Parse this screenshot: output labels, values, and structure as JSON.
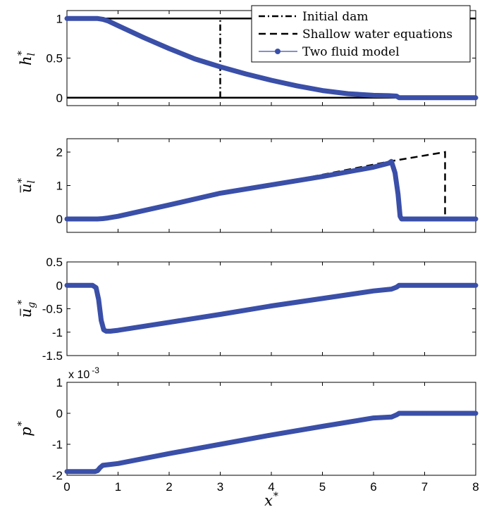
{
  "chart_data": {
    "type": "line",
    "xlabel": "x",
    "xlabel_sup": "*",
    "xlim": [
      0,
      8
    ],
    "xticks": [
      0,
      1,
      2,
      3,
      4,
      5,
      6,
      7,
      8
    ],
    "legend": {
      "placement": "top-right",
      "entries": [
        {
          "name": "Initial dam",
          "style": "dashdot",
          "color": "#000000"
        },
        {
          "name": "Shallow water equations",
          "style": "dashed",
          "color": "#000000"
        },
        {
          "name": "Two fluid model",
          "style": "line-marker",
          "color": "#3a4fa8"
        }
      ]
    },
    "panels": [
      {
        "id": "h",
        "ylabel_main": "h",
        "ylabel_sub": "l",
        "ylabel_sup": "*",
        "ylim": [
          -0.1,
          1.1
        ],
        "yticks": [
          0,
          0.5,
          1
        ],
        "ytick_labels": [
          "0",
          "0.5",
          "1"
        ],
        "series": [
          {
            "name": "Initial dam",
            "style": "dashdot",
            "x": [
              3,
              3
            ],
            "y": [
              0,
              1
            ]
          },
          {
            "name": "Shallow water equations",
            "style": "solid",
            "x": [
              0,
              8
            ],
            "y": [
              1,
              1
            ]
          },
          {
            "name": "Shallow water equations",
            "style": "solid",
            "x": [
              0,
              8
            ],
            "y": [
              0,
              0
            ]
          },
          {
            "name": "Two fluid model",
            "style": "line-marker",
            "x": [
              0,
              0.5,
              0.6,
              0.7,
              0.8,
              1,
              1.5,
              2,
              2.5,
              3,
              3.5,
              4,
              4.5,
              5,
              5.5,
              6,
              6.3,
              6.45,
              6.5,
              7,
              8
            ],
            "y": [
              1,
              1,
              1,
              0.99,
              0.97,
              0.91,
              0.76,
              0.62,
              0.49,
              0.39,
              0.3,
              0.22,
              0.15,
              0.09,
              0.05,
              0.03,
              0.025,
              0.02,
              0,
              0,
              0
            ]
          }
        ]
      },
      {
        "id": "ul",
        "ylabel_main": "u",
        "ylabel_sub": "l",
        "ylabel_sup": "*",
        "ylabel_bar": true,
        "ylim": [
          -0.4,
          2.4
        ],
        "yticks": [
          0,
          1,
          2
        ],
        "ytick_labels": [
          "0",
          "1",
          "2"
        ],
        "series": [
          {
            "name": "Shallow water equations",
            "style": "dashed",
            "x": [
              0,
              0.6,
              6.35,
              7.4,
              7.4,
              8
            ],
            "y": [
              0,
              0,
              1.73,
              2.0,
              0,
              0
            ]
          },
          {
            "name": "Two fluid model",
            "style": "line-marker",
            "x": [
              0,
              0.5,
              0.6,
              0.7,
              0.8,
              1,
              2,
              3,
              4,
              5,
              6,
              6.3,
              6.35,
              6.42,
              6.48,
              6.52,
              6.55,
              7,
              8
            ],
            "y": [
              0,
              0,
              0,
              0.01,
              0.03,
              0.08,
              0.42,
              0.77,
              1.02,
              1.27,
              1.55,
              1.67,
              1.72,
              1.38,
              0.74,
              0.08,
              0,
              0,
              0
            ]
          }
        ]
      },
      {
        "id": "ug",
        "ylabel_main": "u",
        "ylabel_sub": "g",
        "ylabel_sup": "*",
        "ylabel_bar": true,
        "ylim": [
          -1.5,
          0.5
        ],
        "yticks": [
          -1.5,
          -1,
          -0.5,
          0,
          0.5
        ],
        "ytick_labels": [
          "-1.5",
          "-1",
          "-0.5",
          "0",
          "0.5"
        ],
        "series": [
          {
            "name": "Two fluid model",
            "style": "line-marker",
            "x": [
              0,
              0.5,
              0.57,
              0.62,
              0.67,
              0.72,
              0.77,
              0.85,
              1,
              2,
              3,
              4,
              5,
              6,
              6.35,
              6.45,
              6.5,
              7,
              8
            ],
            "y": [
              0,
              0,
              -0.05,
              -0.3,
              -0.75,
              -0.95,
              -0.98,
              -0.98,
              -0.96,
              -0.79,
              -0.62,
              -0.44,
              -0.28,
              -0.12,
              -0.08,
              -0.04,
              0,
              0,
              0
            ]
          }
        ]
      },
      {
        "id": "p",
        "ylabel_main": "p",
        "ylabel_sup": "*",
        "ylim": [
          -2,
          1
        ],
        "yticks": [
          -2,
          -1,
          0,
          1
        ],
        "ytick_labels": [
          "-2",
          "-1",
          "0",
          "1"
        ],
        "exponent_label": "x 10",
        "exponent_power": "-3",
        "series": [
          {
            "name": "Two fluid model",
            "style": "line-marker",
            "x": [
              0,
              0.55,
              0.6,
              0.65,
              0.7,
              1,
              2,
              3,
              4,
              5,
              6,
              6.35,
              6.45,
              6.5,
              7,
              8
            ],
            "y": [
              -1.88,
              -1.88,
              -1.85,
              -1.75,
              -1.68,
              -1.62,
              -1.3,
              -1.0,
              -0.7,
              -0.42,
              -0.15,
              -0.12,
              -0.05,
              0,
              0,
              0
            ]
          }
        ]
      }
    ]
  }
}
